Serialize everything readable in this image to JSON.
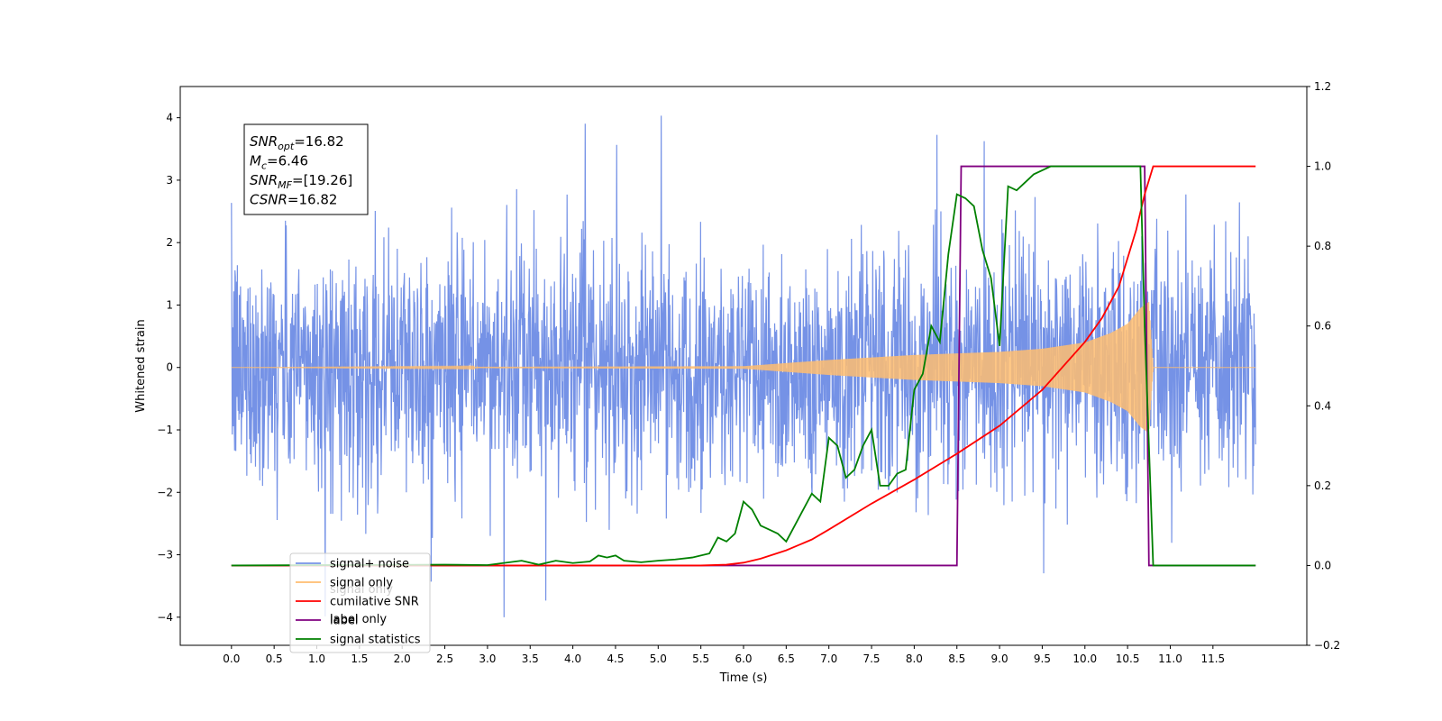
{
  "chart_data": {
    "type": "line",
    "title": "",
    "xlabel": "Time (s)",
    "ylabel": "Whitened strain",
    "xlim": [
      -0.6,
      12.6
    ],
    "ylim": [
      -4.45,
      4.5
    ],
    "y2lim": [
      -0.2,
      1.2
    ],
    "x_ticks": [
      "0.0",
      "0.5",
      "1.0",
      "1.5",
      "2.0",
      "2.5",
      "3.0",
      "3.5",
      "4.0",
      "4.5",
      "5.0",
      "5.5",
      "6.0",
      "6.5",
      "7.0",
      "7.5",
      "8.0",
      "8.5",
      "9.0",
      "9.5",
      "10.0",
      "10.5",
      "11.0",
      "11.5"
    ],
    "y_ticks": [
      "−4",
      "−3",
      "−2",
      "−1",
      "0",
      "1",
      "2",
      "3",
      "4"
    ],
    "y2_ticks": [
      "−0.2",
      "0.0",
      "0.2",
      "0.4",
      "0.6",
      "0.8",
      "1.0",
      "1.2"
    ],
    "grid": false,
    "legend_position": "lower-left",
    "legend": [
      "signal+ noise",
      "signal only",
      "cumilative SNR",
      "label",
      "signal statistics"
    ],
    "legend_ghost_labels": [
      "signal only",
      "label only"
    ],
    "series": [
      {
        "name": "signal+ noise",
        "axis": "left",
        "color": "#7592e6",
        "kind": "noise",
        "x_range": [
          0.0,
          12.0
        ],
        "typical_amplitude": [
          -1.6,
          1.6
        ],
        "peak_range": [
          -4.0,
          4.1
        ]
      },
      {
        "name": "signal only",
        "axis": "left",
        "color": "#ffbd70",
        "kind": "chirp",
        "x_range": [
          0.0,
          10.8
        ],
        "amplitude_at": [
          [
            0.0,
            0.0
          ],
          [
            6.0,
            0.02
          ],
          [
            7.0,
            0.12
          ],
          [
            8.0,
            0.2
          ],
          [
            9.0,
            0.25
          ],
          [
            9.5,
            0.3
          ],
          [
            10.0,
            0.4
          ],
          [
            10.3,
            0.55
          ],
          [
            10.5,
            0.7
          ],
          [
            10.65,
            0.95
          ],
          [
            10.75,
            1.05
          ],
          [
            10.8,
            0.0
          ]
        ]
      },
      {
        "name": "cumilative SNR",
        "axis": "right",
        "color": "#ff0000",
        "x": [
          0.0,
          5.5,
          5.8,
          6.0,
          6.2,
          6.5,
          6.8,
          7.0,
          7.5,
          8.0,
          8.5,
          9.0,
          9.5,
          10.0,
          10.2,
          10.4,
          10.6,
          10.7,
          10.8,
          11.0,
          12.0
        ],
        "y": [
          0.0,
          0.0,
          0.002,
          0.007,
          0.017,
          0.038,
          0.065,
          0.09,
          0.155,
          0.215,
          0.28,
          0.35,
          0.44,
          0.56,
          0.62,
          0.7,
          0.84,
          0.93,
          1.0,
          1.0,
          1.0
        ]
      },
      {
        "name": "label",
        "axis": "right",
        "color": "#800080",
        "x": [
          0.0,
          8.5,
          8.55,
          10.7,
          10.75,
          12.0
        ],
        "y": [
          0.0,
          0.0,
          1.0,
          1.0,
          0.0,
          0.0
        ]
      },
      {
        "name": "signal statistics",
        "axis": "right",
        "color": "#008000",
        "x": [
          0.0,
          2.5,
          3.0,
          3.4,
          3.6,
          3.8,
          4.0,
          4.2,
          4.3,
          4.4,
          4.5,
          4.6,
          4.8,
          5.0,
          5.2,
          5.4,
          5.6,
          5.7,
          5.8,
          5.9,
          6.0,
          6.1,
          6.2,
          6.3,
          6.4,
          6.5,
          6.6,
          6.7,
          6.8,
          6.9,
          7.0,
          7.1,
          7.2,
          7.3,
          7.4,
          7.5,
          7.6,
          7.7,
          7.8,
          7.9,
          8.0,
          8.1,
          8.2,
          8.3,
          8.4,
          8.5,
          8.6,
          8.7,
          8.8,
          8.9,
          9.0,
          9.1,
          9.2,
          9.3,
          9.4,
          9.6,
          10.0,
          10.65,
          10.7,
          10.8,
          11.0,
          12.0
        ],
        "y": [
          0.0,
          0.002,
          0.001,
          0.012,
          0.002,
          0.012,
          0.006,
          0.01,
          0.025,
          0.02,
          0.025,
          0.012,
          0.008,
          0.012,
          0.015,
          0.02,
          0.03,
          0.07,
          0.06,
          0.08,
          0.16,
          0.14,
          0.1,
          0.09,
          0.08,
          0.06,
          0.1,
          0.14,
          0.18,
          0.16,
          0.32,
          0.3,
          0.22,
          0.24,
          0.3,
          0.34,
          0.2,
          0.2,
          0.23,
          0.24,
          0.44,
          0.48,
          0.6,
          0.56,
          0.78,
          0.93,
          0.92,
          0.9,
          0.79,
          0.72,
          0.55,
          0.95,
          0.94,
          0.96,
          0.98,
          1.0,
          1.0,
          1.0,
          0.6,
          0.0,
          0.0,
          0.0
        ]
      }
    ],
    "annotation_box": {
      "lines": [
        {
          "main": "SNR",
          "sub": "opt",
          "value": "=16.82"
        },
        {
          "main": "M",
          "sub": "c",
          "value": "=6.46"
        },
        {
          "main": "SNR",
          "sub": "MF",
          "value": "=[19.26]"
        },
        {
          "main": "CSNR",
          "sub": "",
          "value": "=16.82"
        }
      ]
    }
  }
}
